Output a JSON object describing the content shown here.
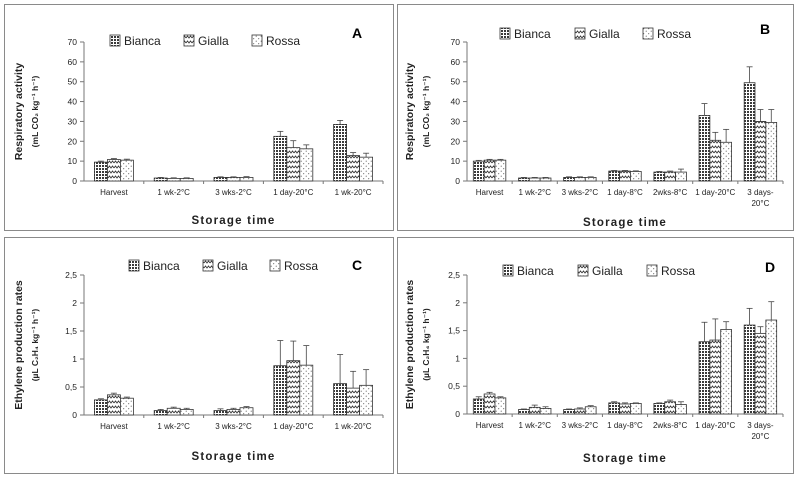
{
  "chart_data": [
    {
      "panel": "A",
      "type": "bar",
      "ylabel_line1": "Respiratory activity",
      "ylabel_line2": "(mL CO₂ kg⁻¹ h⁻¹)",
      "xlabel": "Storage time",
      "ylim": [
        0,
        70
      ],
      "yticks": [
        "0",
        "10",
        "20",
        "30",
        "40",
        "50",
        "60",
        "70"
      ],
      "ytick_values": [
        0,
        10,
        20,
        30,
        40,
        50,
        60,
        70
      ],
      "categories": [
        [
          "Harvest"
        ],
        [
          "1 wk-2°C"
        ],
        [
          "3 wks-2°C"
        ],
        [
          "1 day-20°C"
        ],
        [
          "1 wk-20°C"
        ]
      ],
      "series": [
        {
          "name": "Bianca",
          "values": [
            9.5,
            1.5,
            1.8,
            22.5,
            28.5
          ],
          "errors": [
            0.5,
            0.3,
            0.3,
            2.5,
            2.0
          ]
        },
        {
          "name": "Gialla",
          "values": [
            10.8,
            1.3,
            1.8,
            16.8,
            12.8
          ],
          "errors": [
            0.5,
            0.3,
            0.3,
            3.5,
            1.5
          ]
        },
        {
          "name": "Rossa",
          "values": [
            10.5,
            1.3,
            1.8,
            16.2,
            12.0
          ],
          "errors": [
            0.5,
            0.3,
            0.4,
            2.0,
            2.0
          ]
        }
      ]
    },
    {
      "panel": "B",
      "type": "bar",
      "ylabel_line1": "Respiratory activity",
      "ylabel_line2": "(mL CO₂ kg⁻¹ h⁻¹)",
      "xlabel": "Storage time",
      "ylim": [
        0,
        70
      ],
      "yticks": [
        "0",
        "10",
        "20",
        "30",
        "40",
        "50",
        "60",
        "70"
      ],
      "ytick_values": [
        0,
        10,
        20,
        30,
        40,
        50,
        60,
        70
      ],
      "categories": [
        [
          "Harvest"
        ],
        [
          "1 wk-2°C"
        ],
        [
          "3 wks-2°C"
        ],
        [
          "1 day-8°C"
        ],
        [
          "2wks-8°C"
        ],
        [
          "1 day-20°C"
        ],
        [
          "3 days-",
          "20°C"
        ]
      ],
      "series": [
        {
          "name": "Bianca",
          "values": [
            10.0,
            1.5,
            1.8,
            5.0,
            4.5,
            33.0,
            49.5
          ],
          "errors": [
            0.4,
            0.3,
            0.3,
            0.3,
            0.3,
            6.0,
            8.0
          ]
        },
        {
          "name": "Gialla",
          "values": [
            10.5,
            1.5,
            1.8,
            5.0,
            4.5,
            20.5,
            30.0
          ],
          "errors": [
            0.4,
            0.3,
            0.3,
            0.3,
            0.5,
            4.0,
            6.0
          ]
        },
        {
          "name": "Rossa",
          "values": [
            10.5,
            1.5,
            1.8,
            4.8,
            4.5,
            19.5,
            29.5
          ],
          "errors": [
            0.4,
            0.3,
            0.3,
            0.3,
            1.5,
            6.5,
            6.5
          ]
        }
      ]
    },
    {
      "panel": "C",
      "type": "bar",
      "ylabel_line1": "Ethylene production rates",
      "ylabel_line2": "(µL C₂H₄ kg⁻¹ h⁻¹)",
      "xlabel": "Storage time",
      "ylim": [
        0,
        2.5
      ],
      "yticks": [
        "0",
        "0,5",
        "1",
        "1,5",
        "2",
        "2,5"
      ],
      "ytick_values": [
        0,
        0.5,
        1,
        1.5,
        2,
        2.5
      ],
      "categories": [
        [
          "Harvest"
        ],
        [
          "1 wk-2°C"
        ],
        [
          "3 wks-2°C"
        ],
        [
          "1 day-20°C"
        ],
        [
          "1 wk-20°C"
        ]
      ],
      "series": [
        {
          "name": "Bianca",
          "values": [
            0.27,
            0.08,
            0.08,
            0.88,
            0.56
          ],
          "errors": [
            0.02,
            0.02,
            0.03,
            0.45,
            0.52
          ]
        },
        {
          "name": "Gialla",
          "values": [
            0.36,
            0.12,
            0.1,
            0.97,
            0.48
          ],
          "errors": [
            0.03,
            0.02,
            0.02,
            0.35,
            0.3
          ]
        },
        {
          "name": "Rossa",
          "values": [
            0.3,
            0.1,
            0.13,
            0.89,
            0.53
          ],
          "errors": [
            0.02,
            0.02,
            0.02,
            0.35,
            0.28
          ]
        }
      ]
    },
    {
      "panel": "D",
      "type": "bar",
      "ylabel_line1": "Ethylene production rates",
      "ylabel_line2": "(µL C₂H₄ kg⁻¹ h⁻¹)",
      "xlabel": "Storage time",
      "ylim": [
        0,
        2.5
      ],
      "yticks": [
        "0",
        "0,5",
        "1",
        "1,5",
        "2",
        "2,5"
      ],
      "ytick_values": [
        0,
        0.5,
        1,
        1.5,
        2,
        2.5
      ],
      "categories": [
        [
          "Harvest"
        ],
        [
          "1 wk-2°C"
        ],
        [
          "3 wks-2°C"
        ],
        [
          "1 day-8°C"
        ],
        [
          "2wks-8°C"
        ],
        [
          "1 day-20°C"
        ],
        [
          "3 days-",
          "20°C"
        ]
      ],
      "series": [
        {
          "name": "Bianca",
          "values": [
            0.27,
            0.08,
            0.08,
            0.2,
            0.19,
            1.3,
            1.6
          ],
          "errors": [
            0.04,
            0.01,
            0.01,
            0.02,
            0.01,
            0.35,
            0.3
          ]
        },
        {
          "name": "Gialla",
          "values": [
            0.36,
            0.12,
            0.09,
            0.18,
            0.22,
            1.33,
            1.45
          ],
          "errors": [
            0.03,
            0.04,
            0.02,
            0.02,
            0.03,
            0.38,
            0.12
          ]
        },
        {
          "name": "Rossa",
          "values": [
            0.29,
            0.1,
            0.13,
            0.19,
            0.17,
            1.52,
            1.69
          ],
          "errors": [
            0.02,
            0.03,
            0.02,
            0.01,
            0.05,
            0.14,
            0.33
          ]
        }
      ]
    }
  ]
}
